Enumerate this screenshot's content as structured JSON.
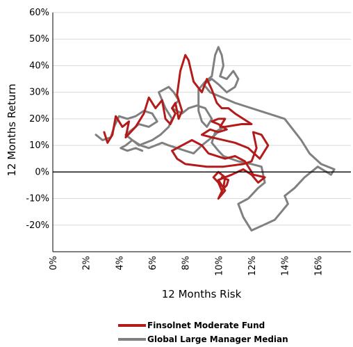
{
  "chart_data": {
    "type": "line",
    "xlabel": "12 Months Risk",
    "ylabel": "12 Months Return",
    "xlim": [
      0,
      0.18
    ],
    "ylim": [
      -0.3,
      0.6
    ],
    "x_ticks": [
      "0%",
      "2%",
      "4%",
      "6%",
      "8%",
      "10%",
      "12%",
      "14%",
      "16%"
    ],
    "y_ticks": [
      "60%",
      "50%",
      "40%",
      "30%",
      "20%",
      "10%",
      "0%",
      "-10%",
      "-20%"
    ],
    "grid": "horizontal",
    "legend_position": "bottom",
    "series": [
      {
        "name": "Finsolnet Moderate Fund",
        "color": "#b31b1b",
        "points": [
          [
            0.031,
            0.15
          ],
          [
            0.033,
            0.11
          ],
          [
            0.036,
            0.14
          ],
          [
            0.038,
            0.21
          ],
          [
            0.042,
            0.17
          ],
          [
            0.046,
            0.19
          ],
          [
            0.044,
            0.13
          ],
          [
            0.05,
            0.17
          ],
          [
            0.055,
            0.22
          ],
          [
            0.058,
            0.28
          ],
          [
            0.062,
            0.24
          ],
          [
            0.066,
            0.27
          ],
          [
            0.068,
            0.2
          ],
          [
            0.071,
            0.18
          ],
          [
            0.074,
            0.22
          ],
          [
            0.072,
            0.24
          ],
          [
            0.074,
            0.26
          ],
          [
            0.076,
            0.2
          ],
          [
            0.078,
            0.23
          ],
          [
            0.075,
            0.29
          ],
          [
            0.077,
            0.38
          ],
          [
            0.08,
            0.44
          ],
          [
            0.082,
            0.42
          ],
          [
            0.085,
            0.34
          ],
          [
            0.09,
            0.3
          ],
          [
            0.093,
            0.35
          ],
          [
            0.096,
            0.31
          ],
          [
            0.099,
            0.26
          ],
          [
            0.102,
            0.24
          ],
          [
            0.106,
            0.24
          ],
          [
            0.11,
            0.22
          ],
          [
            0.115,
            0.2
          ],
          [
            0.12,
            0.18
          ],
          [
            0.114,
            0.18
          ],
          [
            0.104,
            0.17
          ],
          [
            0.101,
            0.17
          ],
          [
            0.104,
            0.2
          ],
          [
            0.1,
            0.2
          ],
          [
            0.096,
            0.19
          ],
          [
            0.1,
            0.18
          ],
          [
            0.105,
            0.16
          ],
          [
            0.1,
            0.15
          ],
          [
            0.095,
            0.16
          ],
          [
            0.09,
            0.14
          ],
          [
            0.096,
            0.13
          ],
          [
            0.11,
            0.11
          ],
          [
            0.118,
            0.09
          ],
          [
            0.125,
            0.05
          ],
          [
            0.13,
            0.1
          ],
          [
            0.126,
            0.14
          ],
          [
            0.121,
            0.15
          ],
          [
            0.123,
            0.09
          ],
          [
            0.12,
            0.04
          ],
          [
            0.115,
            0.03
          ],
          [
            0.103,
            0.02
          ],
          [
            0.093,
            0.02
          ],
          [
            0.08,
            0.03
          ],
          [
            0.075,
            0.05
          ],
          [
            0.072,
            0.08
          ],
          [
            0.078,
            0.1
          ],
          [
            0.084,
            0.12
          ],
          [
            0.09,
            0.1
          ],
          [
            0.094,
            0.07
          ],
          [
            0.104,
            0.05
          ],
          [
            0.11,
            0.06
          ],
          [
            0.116,
            0.04
          ],
          [
            0.121,
            -0.01
          ],
          [
            0.128,
            -0.02
          ],
          [
            0.124,
            -0.04
          ],
          [
            0.12,
            -0.01
          ],
          [
            0.115,
            0.01
          ],
          [
            0.108,
            -0.01
          ],
          [
            0.1,
            -0.03
          ],
          [
            0.104,
            -0.07
          ],
          [
            0.1,
            -0.1
          ],
          [
            0.103,
            -0.06
          ],
          [
            0.104,
            -0.02
          ],
          [
            0.1,
            0.0
          ],
          [
            0.097,
            -0.02
          ],
          [
            0.1,
            -0.04
          ],
          [
            0.102,
            -0.07
          ],
          [
            0.105,
            -0.05
          ],
          [
            0.106,
            -0.03
          ],
          [
            0.102,
            -0.02
          ]
        ]
      },
      {
        "name": "Global Large Manager Median",
        "color": "#808080",
        "points": [
          [
            0.026,
            0.14
          ],
          [
            0.03,
            0.12
          ],
          [
            0.035,
            0.13
          ],
          [
            0.037,
            0.17
          ],
          [
            0.04,
            0.21
          ],
          [
            0.045,
            0.2
          ],
          [
            0.05,
            0.21
          ],
          [
            0.055,
            0.23
          ],
          [
            0.06,
            0.22
          ],
          [
            0.063,
            0.19
          ],
          [
            0.058,
            0.17
          ],
          [
            0.052,
            0.18
          ],
          [
            0.048,
            0.16
          ],
          [
            0.044,
            0.14
          ],
          [
            0.048,
            0.12
          ],
          [
            0.052,
            0.1
          ],
          [
            0.056,
            0.11
          ],
          [
            0.06,
            0.12
          ],
          [
            0.065,
            0.14
          ],
          [
            0.07,
            0.17
          ],
          [
            0.072,
            0.2
          ],
          [
            0.068,
            0.24
          ],
          [
            0.064,
            0.3
          ],
          [
            0.07,
            0.32
          ],
          [
            0.073,
            0.3
          ],
          [
            0.076,
            0.27
          ],
          [
            0.072,
            0.24
          ],
          [
            0.078,
            0.22
          ],
          [
            0.082,
            0.24
          ],
          [
            0.087,
            0.25
          ],
          [
            0.092,
            0.24
          ],
          [
            0.096,
            0.2
          ],
          [
            0.093,
            0.17
          ],
          [
            0.09,
            0.19
          ],
          [
            0.088,
            0.23
          ],
          [
            0.088,
            0.31
          ],
          [
            0.092,
            0.34
          ],
          [
            0.096,
            0.36
          ],
          [
            0.098,
            0.44
          ],
          [
            0.1,
            0.47
          ],
          [
            0.102,
            0.44
          ],
          [
            0.103,
            0.4
          ],
          [
            0.101,
            0.36
          ],
          [
            0.105,
            0.35
          ],
          [
            0.109,
            0.38
          ],
          [
            0.112,
            0.35
          ],
          [
            0.11,
            0.32
          ],
          [
            0.105,
            0.3
          ],
          [
            0.1,
            0.33
          ],
          [
            0.096,
            0.35
          ],
          [
            0.091,
            0.33
          ],
          [
            0.095,
            0.3
          ],
          [
            0.11,
            0.26
          ],
          [
            0.125,
            0.23
          ],
          [
            0.135,
            0.21
          ],
          [
            0.14,
            0.2
          ],
          [
            0.145,
            0.16
          ],
          [
            0.15,
            0.12
          ],
          [
            0.155,
            0.07
          ],
          [
            0.162,
            0.03
          ],
          [
            0.17,
            0.01
          ],
          [
            0.168,
            -0.01
          ],
          [
            0.16,
            0.02
          ],
          [
            0.152,
            -0.02
          ],
          [
            0.146,
            -0.06
          ],
          [
            0.14,
            -0.09
          ],
          [
            0.142,
            -0.12
          ],
          [
            0.138,
            -0.15
          ],
          [
            0.134,
            -0.18
          ],
          [
            0.127,
            -0.2
          ],
          [
            0.12,
            -0.22
          ],
          [
            0.115,
            -0.17
          ],
          [
            0.112,
            -0.12
          ],
          [
            0.118,
            -0.1
          ],
          [
            0.124,
            -0.06
          ],
          [
            0.128,
            -0.04
          ],
          [
            0.126,
            0.02
          ],
          [
            0.12,
            0.03
          ],
          [
            0.112,
            0.04
          ],
          [
            0.103,
            0.06
          ],
          [
            0.1,
            0.08
          ],
          [
            0.096,
            0.11
          ],
          [
            0.098,
            0.15
          ],
          [
            0.103,
            0.17
          ],
          [
            0.098,
            0.14
          ],
          [
            0.094,
            0.12
          ],
          [
            0.09,
            0.1
          ],
          [
            0.085,
            0.07
          ],
          [
            0.08,
            0.08
          ],
          [
            0.075,
            0.09
          ],
          [
            0.07,
            0.1
          ],
          [
            0.066,
            0.11
          ],
          [
            0.062,
            0.1
          ],
          [
            0.058,
            0.09
          ],
          [
            0.053,
            0.1
          ],
          [
            0.048,
            0.12
          ],
          [
            0.044,
            0.1
          ],
          [
            0.041,
            0.09
          ],
          [
            0.045,
            0.08
          ],
          [
            0.05,
            0.09
          ],
          [
            0.054,
            0.08
          ]
        ]
      }
    ]
  }
}
